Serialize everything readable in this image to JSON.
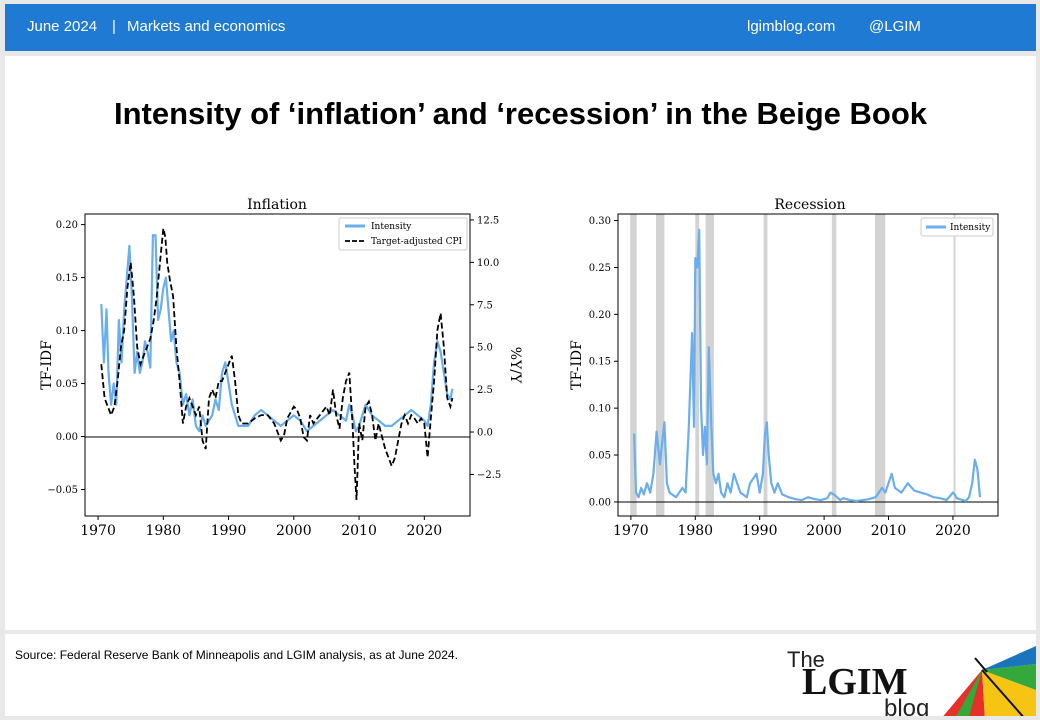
{
  "header": {
    "date": "June 2024",
    "separator": "|",
    "category": "Markets and economics",
    "site": "lgimblog.com",
    "handle": "@LGIM"
  },
  "page_title": "Intensity of ‘inflation’ and ‘recession’ in the Beige Book",
  "footer": {
    "source": "Source: Federal Reserve Bank of Minneapolis and LGIM analysis, as at June 2024."
  },
  "logo": {
    "the": "The",
    "brand": "LGIM",
    "blog": "blog"
  },
  "colors": {
    "header_bg": "#1f7ad3",
    "intensity": "#6aaeed",
    "cpi": "#000000",
    "recession_band": "#d3d3d3"
  },
  "chart_data": [
    {
      "type": "line",
      "title": "Inflation",
      "ylabel": "TF-IDF",
      "y2label": "%Y/Y",
      "xlim": [
        1968,
        2027
      ],
      "ylim": [
        -0.075,
        0.21
      ],
      "y2lim": [
        -4.95,
        12.85
      ],
      "xticks": [
        1970,
        1980,
        1990,
        2000,
        2010,
        2020
      ],
      "yticks": [
        0.2,
        0.15,
        0.1,
        0.05,
        0.0,
        -0.05
      ],
      "ytick_labels": [
        "0.20",
        "0.15",
        "0.10",
        "0.05",
        "0.00",
        "−0.05"
      ],
      "y2ticks": [
        12.5,
        10.0,
        7.5,
        5.0,
        2.5,
        0.0,
        -2.5
      ],
      "y2tick_labels": [
        "12.5",
        "10.0",
        "7.5",
        "5.0",
        "2.5",
        "0.0",
        "−2.5"
      ],
      "legend_position": "top-right",
      "series": [
        {
          "name": "Intensity",
          "axis": "left",
          "style": "solid",
          "x": [
            1970.5,
            1970.9,
            1971.3,
            1971.6,
            1972.0,
            1972.4,
            1972.8,
            1973.2,
            1973.6,
            1974.0,
            1974.4,
            1974.8,
            1975.2,
            1975.6,
            1976.0,
            1976.4,
            1976.8,
            1977.2,
            1977.6,
            1978.0,
            1978.4,
            1978.8,
            1979.2,
            1979.6,
            1980.0,
            1980.4,
            1980.8,
            1981.2,
            1981.6,
            1982.0,
            1982.5,
            1983.0,
            1983.5,
            1984.0,
            1984.5,
            1985.0,
            1985.5,
            1986.0,
            1986.5,
            1987.0,
            1987.5,
            1988.0,
            1988.5,
            1989.0,
            1989.5,
            1990.0,
            1990.5,
            1991.0,
            1991.5,
            1992.0,
            1993.0,
            1994.0,
            1995.0,
            1996.0,
            1997.0,
            1998.0,
            1999.0,
            2000.0,
            2001.0,
            2002.0,
            2003.0,
            2004.0,
            2005.0,
            2006.0,
            2007.0,
            2008.0,
            2008.5,
            2009.0,
            2009.5,
            2010.0,
            2011.0,
            2012.0,
            2013.0,
            2014.0,
            2015.0,
            2016.0,
            2017.0,
            2018.0,
            2019.0,
            2020.0,
            2020.5,
            2021.0,
            2021.5,
            2022.0,
            2022.5,
            2023.0,
            2023.5,
            2024.0,
            2024.3
          ],
          "y": [
            0.125,
            0.07,
            0.12,
            0.06,
            0.03,
            0.05,
            0.03,
            0.11,
            0.07,
            0.12,
            0.15,
            0.18,
            0.13,
            0.06,
            0.08,
            0.06,
            0.07,
            0.09,
            0.08,
            0.065,
            0.19,
            0.19,
            0.11,
            0.12,
            0.14,
            0.15,
            0.12,
            0.09,
            0.1,
            0.07,
            0.06,
            0.03,
            0.04,
            0.02,
            0.035,
            0.01,
            0.005,
            0.02,
            0.01,
            0.015,
            0.02,
            0.035,
            0.025,
            0.06,
            0.07,
            0.05,
            0.03,
            0.02,
            0.01,
            0.01,
            0.01,
            0.02,
            0.025,
            0.02,
            0.015,
            0.01,
            0.015,
            0.02,
            0.015,
            0.005,
            0.01,
            0.015,
            0.02,
            0.025,
            0.02,
            0.015,
            0.03,
            0.02,
            0.005,
            0.01,
            0.03,
            0.02,
            0.015,
            0.01,
            0.01,
            0.015,
            0.02,
            0.025,
            0.02,
            0.015,
            0.01,
            0.03,
            0.07,
            0.09,
            0.08,
            0.06,
            0.04,
            0.035,
            0.045
          ]
        },
        {
          "name": "Target-adjusted CPI",
          "axis": "right",
          "style": "dashed",
          "x": [
            1970.5,
            1971.0,
            1971.5,
            1972.0,
            1972.5,
            1973.0,
            1973.5,
            1974.0,
            1974.5,
            1975.0,
            1975.5,
            1976.0,
            1976.5,
            1977.0,
            1977.5,
            1978.0,
            1978.5,
            1979.0,
            1979.5,
            1980.0,
            1980.3,
            1980.6,
            1981.0,
            1981.5,
            1982.0,
            1982.5,
            1983.0,
            1983.5,
            1984.0,
            1984.5,
            1985.0,
            1985.5,
            1986.0,
            1986.5,
            1987.0,
            1987.5,
            1988.0,
            1988.5,
            1989.0,
            1989.5,
            1990.0,
            1990.5,
            1991.0,
            1991.5,
            1992.0,
            1993.0,
            1994.0,
            1995.0,
            1996.0,
            1997.0,
            1998.0,
            1998.5,
            1999.0,
            2000.0,
            2000.5,
            2001.0,
            2001.5,
            2002.0,
            2002.5,
            2003.0,
            2004.0,
            2005.0,
            2005.5,
            2006.0,
            2006.5,
            2007.0,
            2007.5,
            2008.0,
            2008.5,
            2009.0,
            2009.3,
            2009.6,
            2010.0,
            2010.5,
            2011.0,
            2011.5,
            2012.0,
            2012.5,
            2013.0,
            2014.0,
            2015.0,
            2015.5,
            2016.0,
            2016.5,
            2017.0,
            2017.5,
            2018.0,
            2018.5,
            2019.0,
            2019.5,
            2020.0,
            2020.5,
            2021.0,
            2021.5,
            2022.0,
            2022.5,
            2023.0,
            2023.5,
            2024.0,
            2024.3
          ],
          "y": [
            4.0,
            2.0,
            1.5,
            1.0,
            1.5,
            3.0,
            5.0,
            6.0,
            8.5,
            10.0,
            8.0,
            5.0,
            4.0,
            4.5,
            5.0,
            5.5,
            6.5,
            8.0,
            10.0,
            12.0,
            11.5,
            10.0,
            9.0,
            8.0,
            5.0,
            3.0,
            0.5,
            1.5,
            2.0,
            1.5,
            1.0,
            1.5,
            -0.5,
            -1.0,
            2.0,
            2.5,
            2.0,
            3.0,
            3.0,
            3.5,
            4.0,
            4.5,
            3.0,
            1.0,
            0.5,
            0.5,
            0.8,
            1.0,
            1.0,
            0.5,
            -0.5,
            -0.2,
            0.8,
            1.5,
            1.3,
            0.8,
            -0.3,
            -0.5,
            1.0,
            0.5,
            1.0,
            1.5,
            1.0,
            2.5,
            1.0,
            0.2,
            2.0,
            3.0,
            3.5,
            0.5,
            -2.0,
            -4.0,
            0.5,
            -0.5,
            1.5,
            1.8,
            1.0,
            -0.5,
            0.5,
            -1.0,
            -2.0,
            -1.5,
            -0.5,
            0.5,
            1.0,
            0.5,
            1.0,
            0.8,
            0.5,
            0.8,
            0.5,
            -1.5,
            0.8,
            3.0,
            6.0,
            7.0,
            5.0,
            2.0,
            1.5,
            2.0
          ]
        }
      ]
    },
    {
      "type": "line",
      "title": "Recession",
      "ylabel": "TF-IDF",
      "xlim": [
        1968,
        2027
      ],
      "ylim": [
        -0.015,
        0.307
      ],
      "xticks": [
        1970,
        1980,
        1990,
        2000,
        2010,
        2020
      ],
      "yticks": [
        0.3,
        0.25,
        0.2,
        0.15,
        0.1,
        0.05,
        0.0
      ],
      "ytick_labels": [
        "0.30",
        "0.25",
        "0.20",
        "0.15",
        "0.10",
        "0.05",
        "0.00"
      ],
      "legend_position": "top-right",
      "recession_bands": [
        [
          1969.9,
          1970.9
        ],
        [
          1973.9,
          1975.2
        ],
        [
          1980.0,
          1980.6
        ],
        [
          1981.6,
          1982.9
        ],
        [
          1990.6,
          1991.2
        ],
        [
          2001.2,
          2001.9
        ],
        [
          2007.9,
          2009.5
        ],
        [
          2020.1,
          2020.4
        ]
      ],
      "series": [
        {
          "name": "Intensity",
          "x": [
            1970.5,
            1970.8,
            1971.2,
            1971.6,
            1972.0,
            1972.5,
            1973.0,
            1973.5,
            1974.0,
            1974.5,
            1974.8,
            1975.2,
            1975.6,
            1976.0,
            1977.0,
            1978.0,
            1978.5,
            1979.0,
            1979.5,
            1979.8,
            1980.0,
            1980.3,
            1980.6,
            1980.9,
            1981.2,
            1981.5,
            1981.8,
            1982.1,
            1982.5,
            1982.8,
            1983.2,
            1983.6,
            1984.0,
            1984.5,
            1985.0,
            1985.5,
            1986.0,
            1987.0,
            1988.0,
            1988.5,
            1989.0,
            1989.5,
            1990.0,
            1990.5,
            1990.8,
            1991.1,
            1991.4,
            1991.8,
            1992.3,
            1992.8,
            1993.5,
            1994.5,
            1995.5,
            1996.5,
            1997.5,
            1998.5,
            1999.5,
            2000.5,
            2001.0,
            2001.5,
            2002.0,
            2002.5,
            2003.0,
            2004.0,
            2005.0,
            2006.0,
            2007.0,
            2008.0,
            2008.5,
            2009.0,
            2009.5,
            2010.0,
            2010.5,
            2011.0,
            2012.0,
            2013.0,
            2014.0,
            2015.0,
            2016.0,
            2017.0,
            2018.0,
            2019.0,
            2020.0,
            2020.3,
            2020.6,
            2021.0,
            2021.5,
            2022.0,
            2022.5,
            2023.0,
            2023.4,
            2023.8,
            2024.2
          ],
          "y": [
            0.073,
            0.01,
            0.005,
            0.015,
            0.008,
            0.02,
            0.01,
            0.03,
            0.075,
            0.04,
            0.06,
            0.085,
            0.02,
            0.01,
            0.005,
            0.015,
            0.01,
            0.08,
            0.18,
            0.08,
            0.26,
            0.25,
            0.29,
            0.1,
            0.05,
            0.08,
            0.04,
            0.165,
            0.08,
            0.03,
            0.02,
            0.03,
            0.01,
            0.005,
            0.02,
            0.01,
            0.03,
            0.01,
            0.005,
            0.02,
            0.025,
            0.03,
            0.01,
            0.03,
            0.07,
            0.085,
            0.05,
            0.02,
            0.01,
            0.02,
            0.008,
            0.005,
            0.003,
            0.002,
            0.005,
            0.003,
            0.002,
            0.004,
            0.01,
            0.008,
            0.005,
            0.002,
            0.004,
            0.002,
            0.001,
            0.002,
            0.003,
            0.005,
            0.01,
            0.015,
            0.01,
            0.02,
            0.03,
            0.015,
            0.01,
            0.02,
            0.012,
            0.01,
            0.008,
            0.005,
            0.004,
            0.002,
            0.01,
            0.008,
            0.004,
            0.003,
            0.002,
            0.001,
            0.005,
            0.02,
            0.045,
            0.035,
            0.005
          ]
        }
      ]
    }
  ]
}
